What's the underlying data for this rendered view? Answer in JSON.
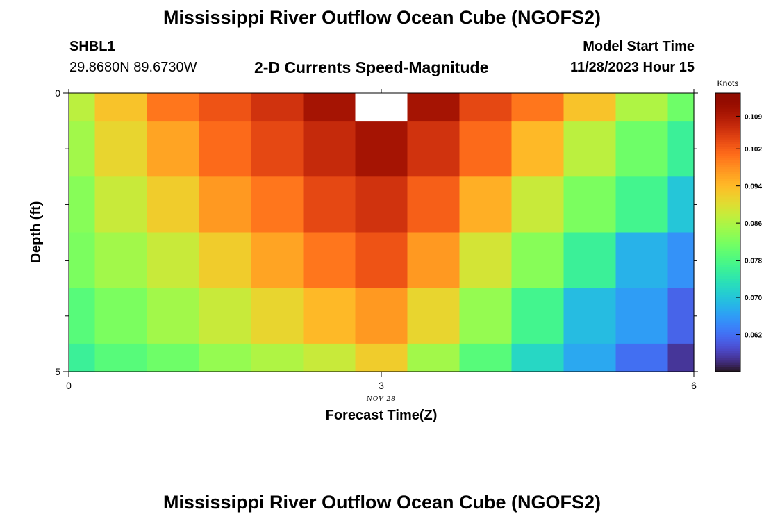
{
  "header": {
    "title": "Mississippi River Outflow Ocean Cube (NGOFS2)",
    "station": "SHBL1",
    "coordinates": "29.8680N  89.6730W",
    "subtitle": "2-D Currents Speed-Magnitude",
    "model_start_label": "Model Start Time",
    "model_start_value": "11/28/2023 Hour 15"
  },
  "footer": {
    "title": "Mississippi River Outflow Ocean Cube (NGOFS2)"
  },
  "chart_data": {
    "type": "heatmap",
    "title": "2-D Currents Speed-Magnitude",
    "xlabel": "Forecast Time(Z)",
    "ylabel": "Depth (ft)",
    "date_label": "NOV 28",
    "xlim": [
      0,
      6
    ],
    "ylim": [
      0,
      5
    ],
    "x_ticks": [
      "0",
      "3",
      "6"
    ],
    "y_ticks": [
      "0",
      "5"
    ],
    "x_edges": [
      0,
      0.25,
      0.75,
      1.25,
      1.75,
      2.25,
      2.75,
      3.25,
      3.75,
      4.25,
      4.75,
      5.25,
      5.75,
      6
    ],
    "y_edges": [
      0,
      0.5,
      1.5,
      2.5,
      3.5,
      4.5,
      5
    ],
    "values": [
      [
        0.087,
        0.093,
        0.1,
        0.103,
        0.106,
        0.11,
        null,
        0.11,
        0.104,
        0.1,
        0.093,
        0.086,
        0.081
      ],
      [
        0.085,
        0.091,
        0.096,
        0.101,
        0.104,
        0.107,
        0.11,
        0.106,
        0.101,
        0.094,
        0.087,
        0.081,
        0.076
      ],
      [
        0.083,
        0.088,
        0.092,
        0.097,
        0.1,
        0.104,
        0.106,
        0.102,
        0.095,
        0.088,
        0.082,
        0.077,
        0.07
      ],
      [
        0.082,
        0.085,
        0.088,
        0.092,
        0.096,
        0.1,
        0.103,
        0.097,
        0.089,
        0.083,
        0.076,
        0.068,
        0.065
      ],
      [
        0.079,
        0.082,
        0.085,
        0.088,
        0.091,
        0.094,
        0.097,
        0.091,
        0.084,
        0.077,
        0.069,
        0.066,
        0.061
      ],
      [
        0.076,
        0.079,
        0.081,
        0.084,
        0.086,
        0.088,
        0.092,
        0.085,
        0.079,
        0.072,
        0.067,
        0.062,
        0.057
      ]
    ],
    "colorbar": {
      "label": "Knots",
      "range": [
        0.054,
        0.114
      ],
      "ticks": [
        "0.109",
        "0.102",
        "0.094",
        "0.086",
        "0.078",
        "0.070",
        "0.062"
      ],
      "tick_values": [
        0.109,
        0.102,
        0.094,
        0.086,
        0.078,
        0.07,
        0.062
      ],
      "colormap": "turbo"
    }
  }
}
